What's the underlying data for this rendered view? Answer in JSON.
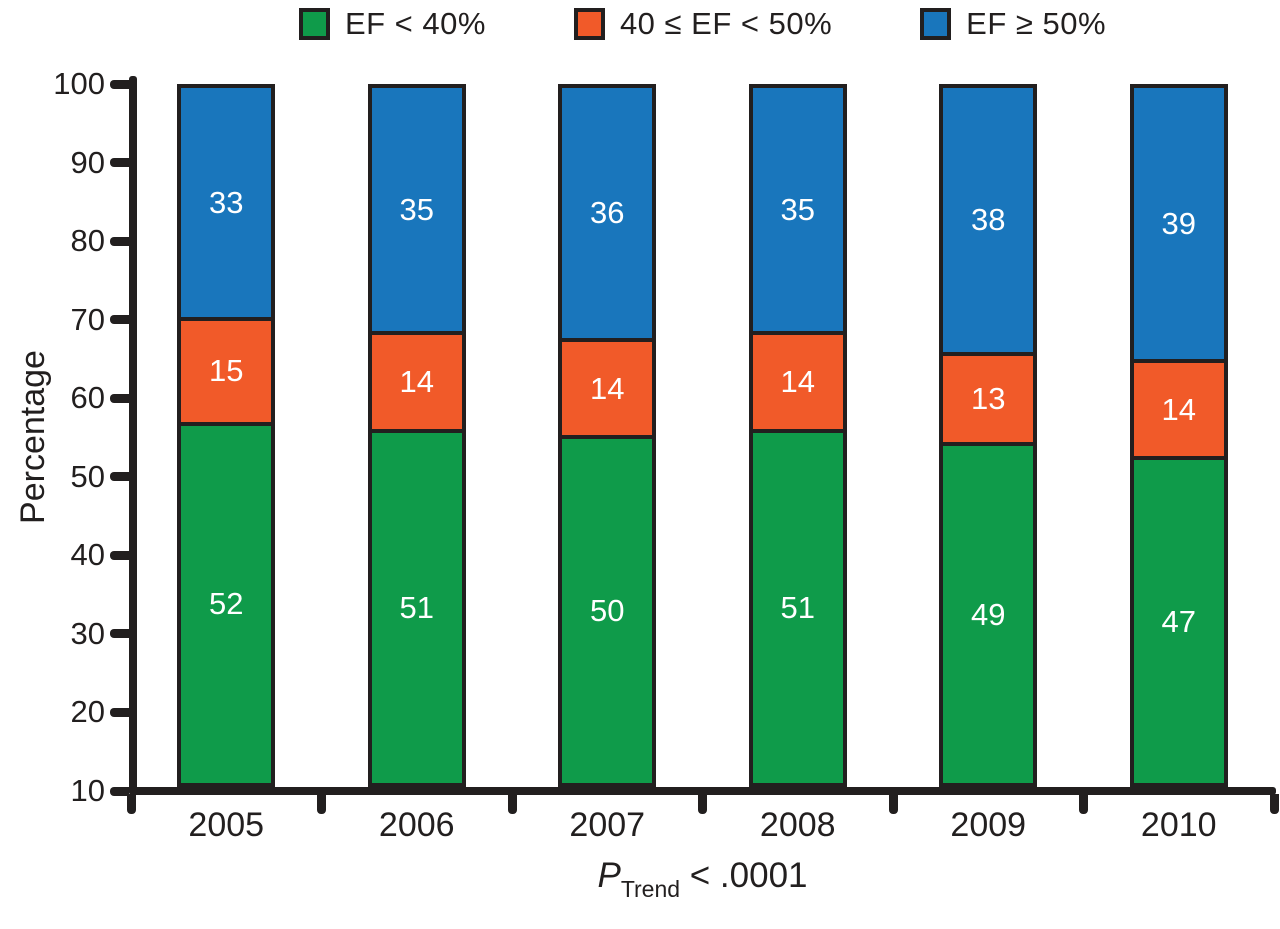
{
  "chart_data": {
    "type": "bar",
    "subtype": "stacked-percentage",
    "categories": [
      "2005",
      "2006",
      "2007",
      "2008",
      "2009",
      "2010"
    ],
    "series": [
      {
        "name": "EF < 40%",
        "color": "#0f9b4a",
        "values": [
          52,
          51,
          50,
          51,
          49,
          47
        ]
      },
      {
        "name": "40 ≤ EF < 50%",
        "color": "#f15a29",
        "values": [
          15,
          14,
          14,
          14,
          13,
          14
        ]
      },
      {
        "name": "EF ≥ 50%",
        "color": "#1976bc",
        "values": [
          33,
          35,
          36,
          35,
          38,
          39
        ]
      }
    ],
    "stack_order_bottom_to_top": [
      0,
      1,
      2
    ],
    "bar_value_labels": true,
    "ylabel": "Percentage",
    "ylim": [
      10,
      100
    ],
    "y_ticks": [
      100,
      90,
      80,
      70,
      60,
      50,
      40,
      30,
      20,
      10
    ],
    "grid": false,
    "legend_position": "top",
    "caption": {
      "symbol": "P",
      "subscript": "Trend",
      "rest": " < .0001"
    }
  },
  "colors": {
    "axis": "#221f1f",
    "background": "#ffffff",
    "bar_label_text": "#ffffff"
  }
}
